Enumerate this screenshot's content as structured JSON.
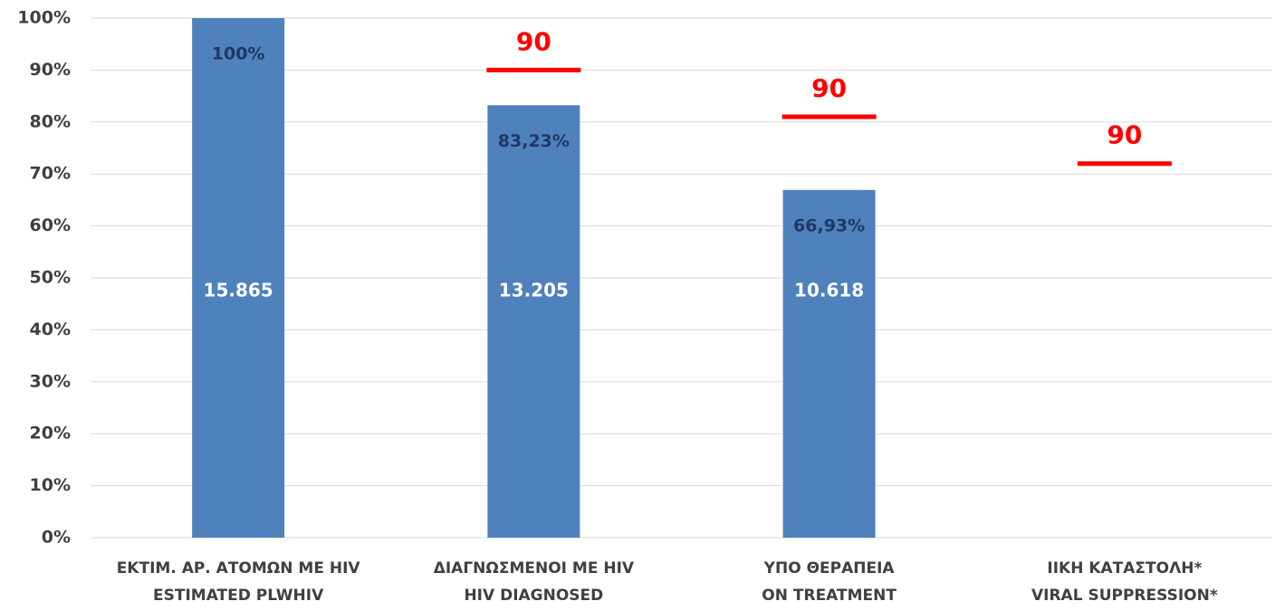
{
  "chart_data": {
    "type": "bar",
    "categories": [
      [
        "ΕΚΤΙΜ. ΑΡ. ΑΤΟΜΩΝ ΜΕ HIV",
        "ESTIMATED PLWHIV"
      ],
      [
        "ΔΙΑΓΝΩΣΜΕΝΟΙ ΜΕ HIV",
        "HIV DIAGNOSED"
      ],
      [
        "ΥΠΟ ΘΕΡΑΠΕΙΑ",
        "ON TREATMENT"
      ],
      [
        "ΙΙΚΗ ΚΑΤΑΣΤΟΛΗ*",
        "VIRAL SUPPRESSION*"
      ]
    ],
    "values": [
      100,
      83.23,
      66.93,
      null
    ],
    "value_labels": [
      "100%",
      "83,23%",
      "66,93%",
      null
    ],
    "count_labels": [
      "15.865",
      "13.205",
      "10.618",
      null
    ],
    "color": "#4f81bd",
    "targets": {
      "values": [
        null,
        90,
        81,
        72
      ],
      "color": "#ff0000"
    },
    "target_texts": [
      null,
      "90",
      "90",
      "90"
    ],
    "ylim": [
      0,
      100
    ],
    "yticks": [
      {
        "value": 0,
        "label": "0%"
      },
      {
        "value": 10,
        "label": "10%"
      },
      {
        "value": 20,
        "label": "20%"
      },
      {
        "value": 30,
        "label": "30%"
      },
      {
        "value": 40,
        "label": "40%"
      },
      {
        "value": 50,
        "label": "50%"
      },
      {
        "value": 60,
        "label": "60%"
      },
      {
        "value": 70,
        "label": "70%"
      },
      {
        "value": 80,
        "label": "80%"
      },
      {
        "value": 90,
        "label": "90%"
      },
      {
        "value": 100,
        "label": "100%"
      }
    ],
    "grid": true
  }
}
